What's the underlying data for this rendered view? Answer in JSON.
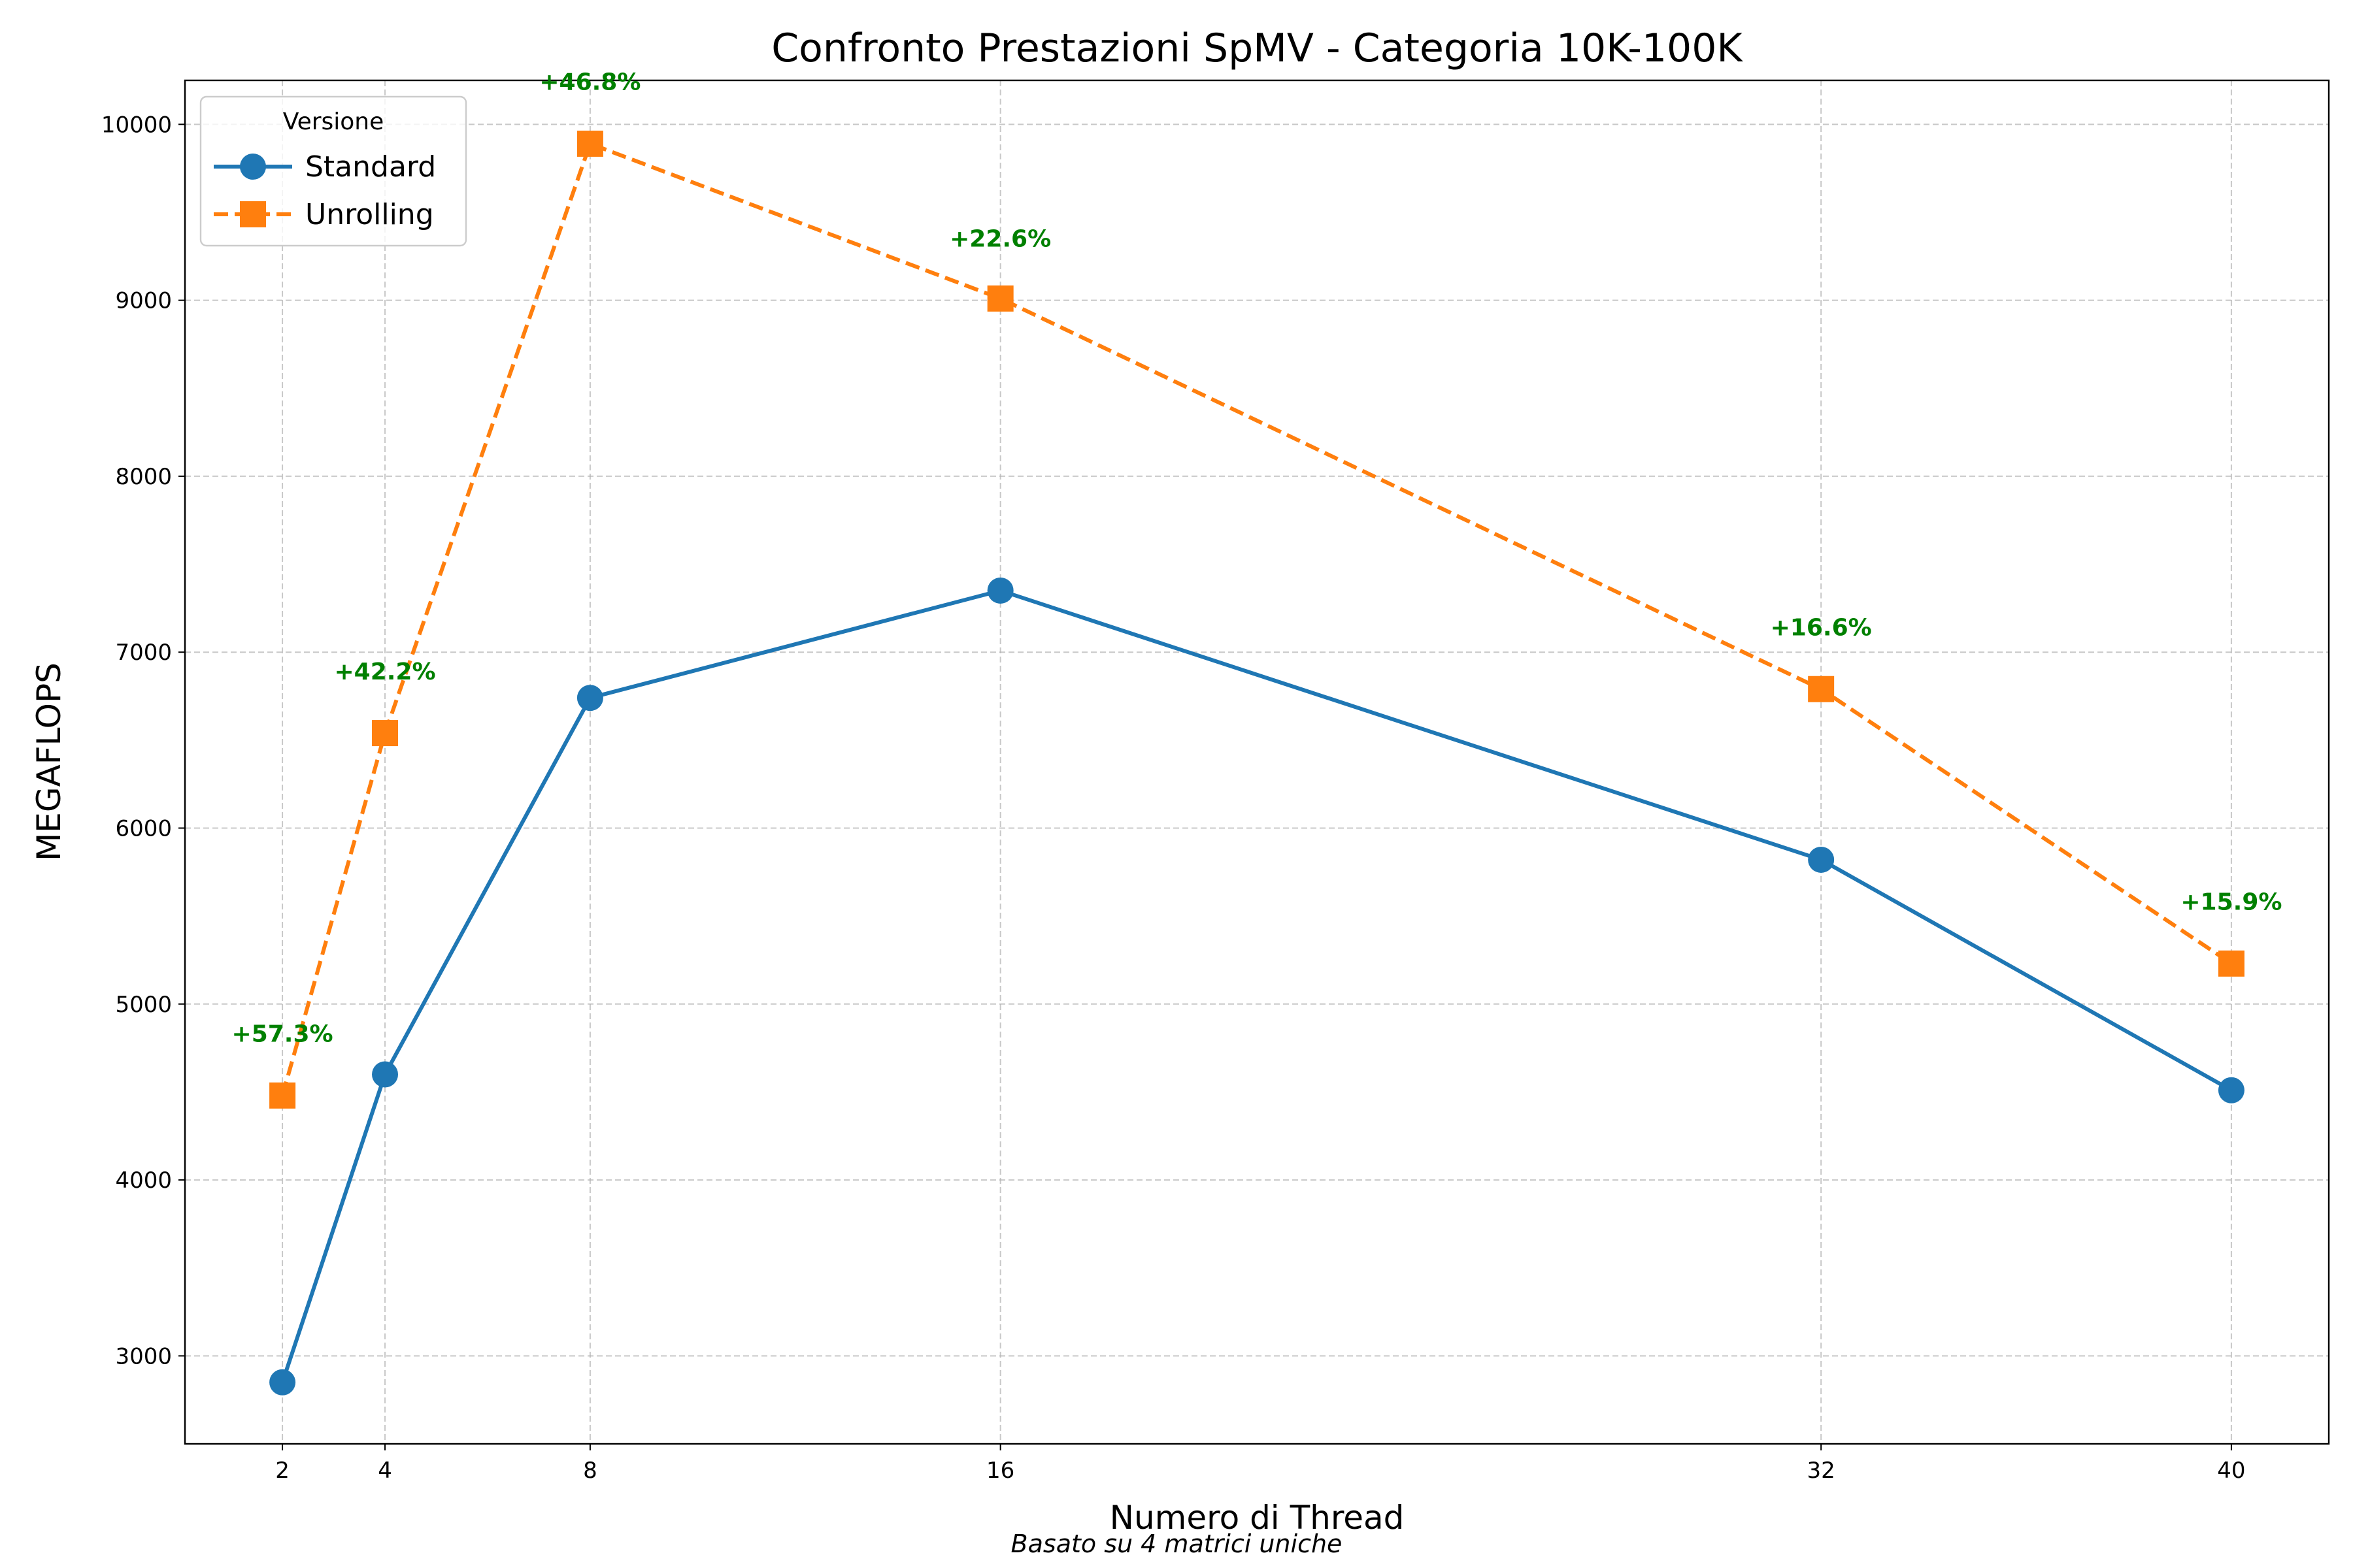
{
  "chart_data": {
    "type": "line",
    "title": "Confronto Prestazioni SpMV - Categoria 10K-100K",
    "xlabel": "Numero di Thread",
    "ylabel": "MEGAFLOPS",
    "x": [
      2,
      4,
      8,
      16,
      32,
      40
    ],
    "xticks": [
      "2",
      "4",
      "8",
      "16",
      "32",
      "40"
    ],
    "yticks": [
      "3000",
      "4000",
      "5000",
      "6000",
      "7000",
      "8000",
      "9000",
      "10000"
    ],
    "xlim": [
      0.1,
      41.9
    ],
    "ylim": [
      2500,
      10250
    ],
    "grid": true,
    "legend": {
      "title": "Versione",
      "placement": "top-left"
    },
    "series": [
      {
        "name": "Standard",
        "color": "#1f77b4",
        "marker": "circle",
        "line": "solid",
        "values": [
          2850,
          4600,
          6740,
          7350,
          5820,
          4510
        ]
      },
      {
        "name": "Unrolling",
        "color": "#ff7f0e",
        "marker": "square",
        "line": "dashed",
        "values": [
          4480,
          6540,
          9890,
          9010,
          6790,
          5230
        ]
      }
    ],
    "annotations": [
      {
        "x": 2,
        "y": 4830,
        "text": "+57.3%"
      },
      {
        "x": 4,
        "y": 6890,
        "text": "+42.2%"
      },
      {
        "x": 8,
        "y": 10240,
        "text": "+46.8%"
      },
      {
        "x": 16,
        "y": 9350,
        "text": "+22.6%"
      },
      {
        "x": 32,
        "y": 7140,
        "text": "+16.6%"
      },
      {
        "x": 40,
        "y": 5580,
        "text": "+15.9%"
      }
    ],
    "annotation_color": "#008000",
    "footnote": "Basato su 4 matrici uniche"
  }
}
